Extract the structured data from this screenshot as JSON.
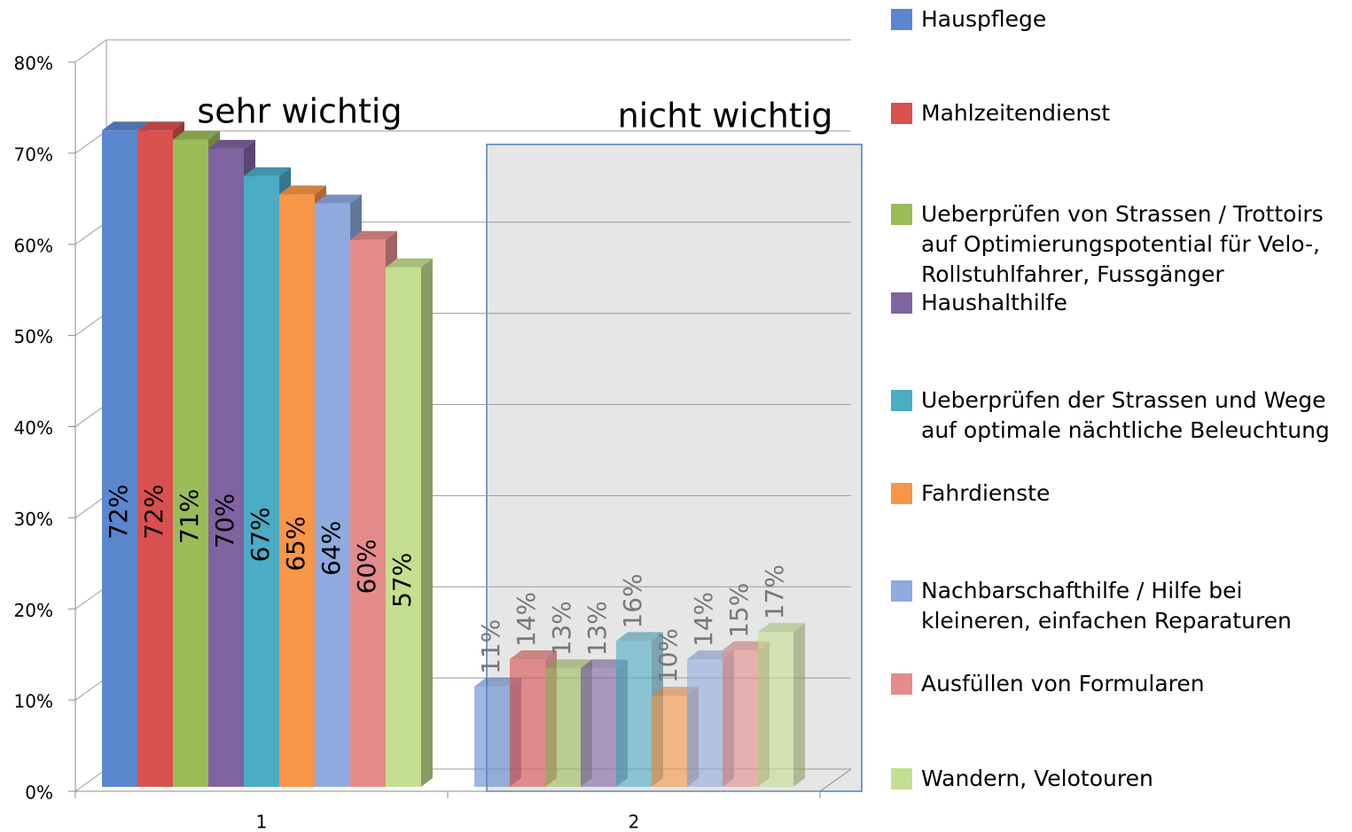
{
  "chart_data": {
    "type": "bar3d",
    "categories": [
      "1",
      "2"
    ],
    "annotations": [
      "sehr wichtig",
      "nicht wichtig"
    ],
    "ylim": [
      0,
      80
    ],
    "yticks": [
      {
        "value": 0,
        "label": "0%"
      },
      {
        "value": 10,
        "label": "10%"
      },
      {
        "value": 20,
        "label": "20%"
      },
      {
        "value": 30,
        "label": "30%"
      },
      {
        "value": 40,
        "label": "40%"
      },
      {
        "value": 50,
        "label": "50%"
      },
      {
        "value": 60,
        "label": "60%"
      },
      {
        "value": 70,
        "label": "70%"
      },
      {
        "value": 80,
        "label": "80%"
      }
    ],
    "grid": true,
    "legend": "right",
    "series": [
      {
        "name": "Hauspflege",
        "color": "#5b87cf",
        "values": [
          72,
          11
        ],
        "value_labels": [
          "72%",
          "11%"
        ]
      },
      {
        "name": "Mahlzeitendienst",
        "color": "#d9504f",
        "values": [
          72,
          14
        ],
        "value_labels": [
          "72%",
          "14%"
        ]
      },
      {
        "name": "Ueberprüfen von Strassen / Trottoirs auf Optimierungspotential für Velo-, Rollstuhlfahrer, Fussgänger",
        "color": "#9bbb59",
        "values": [
          71,
          13
        ],
        "value_labels": [
          "71%",
          "13%"
        ]
      },
      {
        "name": "Haushalthilfe",
        "color": "#8064a2",
        "values": [
          70,
          13
        ],
        "value_labels": [
          "70%",
          "13%"
        ]
      },
      {
        "name": "Ueberprüfen der Strassen und Wege auf optimale nächtliche Beleuchtung",
        "color": "#4bacc6",
        "values": [
          67,
          16
        ],
        "value_labels": [
          "67%",
          "16%"
        ]
      },
      {
        "name": "Fahrdienste",
        "color": "#f79646",
        "values": [
          65,
          10
        ],
        "value_labels": [
          "65%",
          "10%"
        ]
      },
      {
        "name": "Nachbarschafthilfe / Hilfe bei kleineren, einfachen Reparaturen",
        "color": "#8eaadf",
        "values": [
          64,
          14
        ],
        "value_labels": [
          "64%",
          "14%"
        ]
      },
      {
        "name": "Ausfüllen von Formularen",
        "color": "#e48c8c",
        "values": [
          60,
          15
        ],
        "value_labels": [
          "60%",
          "15%"
        ]
      },
      {
        "name": "Wandern, Velotouren",
        "color": "#c4df8f",
        "values": [
          57,
          17
        ],
        "value_labels": [
          "57%",
          "17%"
        ]
      }
    ]
  }
}
